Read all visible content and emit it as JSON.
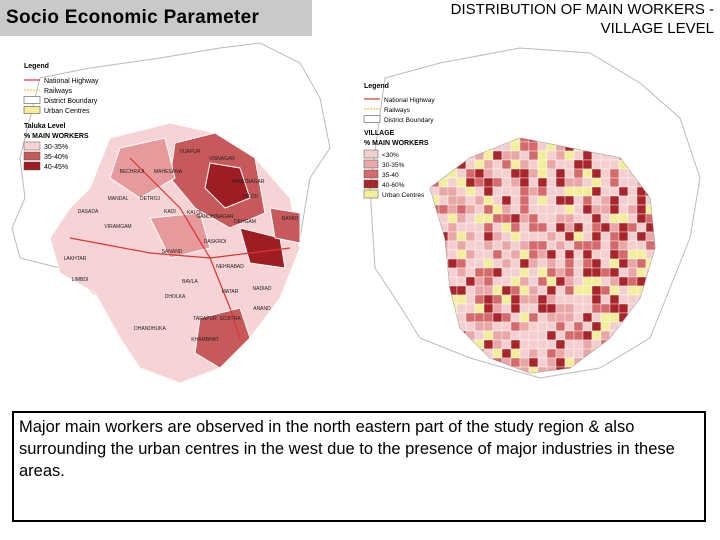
{
  "header": {
    "title": "Socio Economic Parameter",
    "right_title_line1": "DISTRIBUTION OF MAIN WORKERS -",
    "right_title_line2": "VILLAGE LEVEL"
  },
  "left_map": {
    "legend_title": "Legend",
    "legend_items": [
      "National Highway",
      "Railways",
      "District Boundary",
      "Urban Centres"
    ],
    "level": "Taluka Level",
    "measure": "% MAIN WORKERS",
    "classes": [
      "30-35%",
      "35-40%",
      "40-45%"
    ],
    "places": [
      "VIJAPUR",
      "VISNAGAR",
      "BECHRAJI",
      "MAHESANA",
      "HIMATNAGAR",
      "TALOD",
      "MANDAL",
      "DETROJ",
      "KADI",
      "KALOL",
      "GANDHINAGAR",
      "DEHGAM",
      "BAYAD",
      "DASADA",
      "VIRAMGAM",
      "SANAND",
      "DASKROI",
      "LAKHTAR",
      "NEHRABAD",
      "LIMBDI",
      "BAVLA",
      "DHOLKA",
      "MATAR",
      "NADIAD",
      "TARAPUR",
      "SOJITRA",
      "ANAND",
      "DHANDHUKA",
      "KHAMBHAT"
    ]
  },
  "right_map": {
    "legend_title": "Legend",
    "legend_items": [
      "National Highway",
      "Railways",
      "District Boundary"
    ],
    "level": "VILLAGE",
    "measure": "% MAIN WORKERS",
    "classes": [
      "<30%",
      "30-35%",
      "35-40",
      "40-60%",
      "Urban Centres"
    ]
  },
  "caption": "Major main workers are observed in the north eastern part of the study region & also surrounding the urban centres in the west due to the presence of major industries in these areas."
}
